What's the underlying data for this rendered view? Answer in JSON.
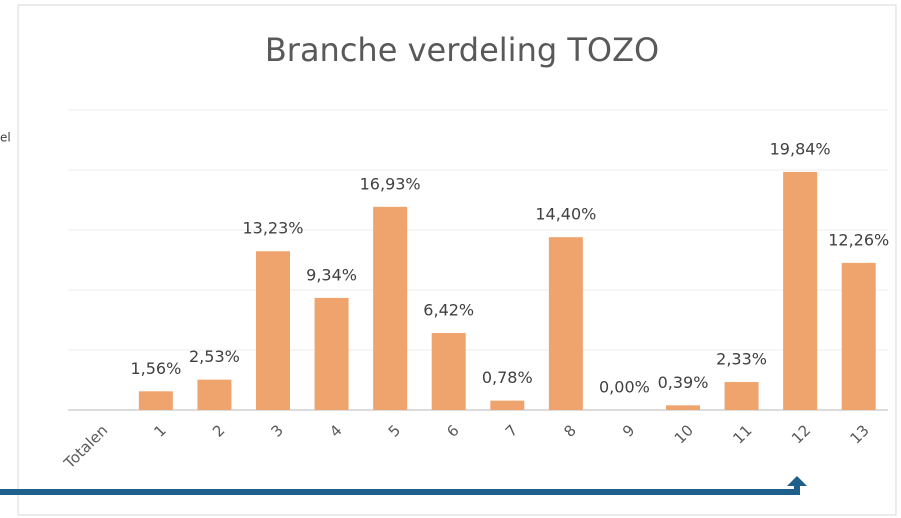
{
  "chart_data": {
    "type": "bar",
    "title": "Branche verdeling TOZO",
    "categories": [
      "Totalen",
      "1",
      "2",
      "3",
      "4",
      "5",
      "6",
      "7",
      "8",
      "9",
      "10",
      "11",
      "12",
      "13"
    ],
    "values": [
      null,
      1.56,
      2.53,
      13.23,
      9.34,
      16.93,
      6.42,
      0.78,
      14.4,
      0.0,
      0.39,
      2.33,
      19.84,
      12.26
    ],
    "value_labels": [
      null,
      "1,56%",
      "2,53%",
      "13,23%",
      "9,34%",
      "16,93%",
      "6,42%",
      "0,78%",
      "14,40%",
      "0,00%",
      "0,39%",
      "2,33%",
      "19,84%",
      "12,26%"
    ],
    "color": "#f0a46d",
    "ylim": [
      0,
      25
    ],
    "yticks": [
      0,
      5,
      10,
      15,
      20,
      25
    ],
    "grid": true
  },
  "side_text": "el"
}
